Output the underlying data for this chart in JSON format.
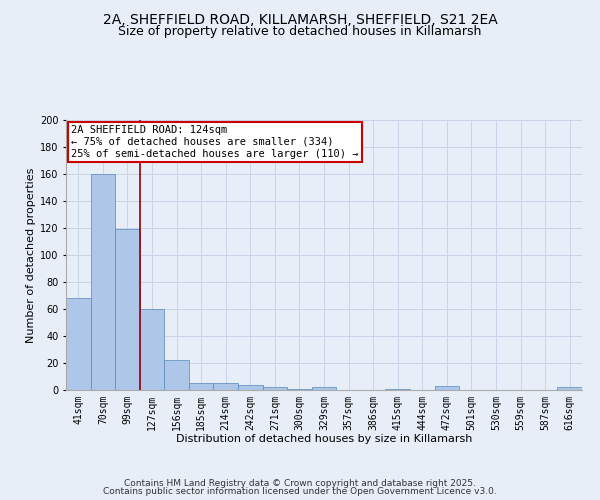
{
  "title_line1": "2A, SHEFFIELD ROAD, KILLAMARSH, SHEFFIELD, S21 2EA",
  "title_line2": "Size of property relative to detached houses in Killamarsh",
  "xlabel": "Distribution of detached houses by size in Killamarsh",
  "ylabel": "Number of detached properties",
  "categories": [
    "41sqm",
    "70sqm",
    "99sqm",
    "127sqm",
    "156sqm",
    "185sqm",
    "214sqm",
    "242sqm",
    "271sqm",
    "300sqm",
    "329sqm",
    "357sqm",
    "386sqm",
    "415sqm",
    "444sqm",
    "472sqm",
    "501sqm",
    "530sqm",
    "559sqm",
    "587sqm",
    "616sqm"
  ],
  "values": [
    68,
    160,
    119,
    60,
    22,
    5,
    5,
    4,
    2,
    1,
    2,
    0,
    0,
    1,
    0,
    3,
    0,
    0,
    0,
    0,
    2
  ],
  "bar_color": "#aec6e8",
  "bar_edge_color": "#5588bb",
  "grid_color": "#c8d4e8",
  "background_color": "#e8eef8",
  "vline_x": 2.5,
  "vline_color": "#990000",
  "annotation_text": "2A SHEFFIELD ROAD: 124sqm\n← 75% of detached houses are smaller (334)\n25% of semi-detached houses are larger (110) →",
  "annotation_box_color": "#ffffff",
  "annotation_box_edge_color": "#cc0000",
  "ylim": [
    0,
    200
  ],
  "yticks": [
    0,
    20,
    40,
    60,
    80,
    100,
    120,
    140,
    160,
    180,
    200
  ],
  "title_fontsize": 10,
  "subtitle_fontsize": 9,
  "axis_fontsize": 8,
  "tick_fontsize": 7,
  "footer_line1": "Contains HM Land Registry data © Crown copyright and database right 2025.",
  "footer_line2": "Contains public sector information licensed under the Open Government Licence v3.0."
}
